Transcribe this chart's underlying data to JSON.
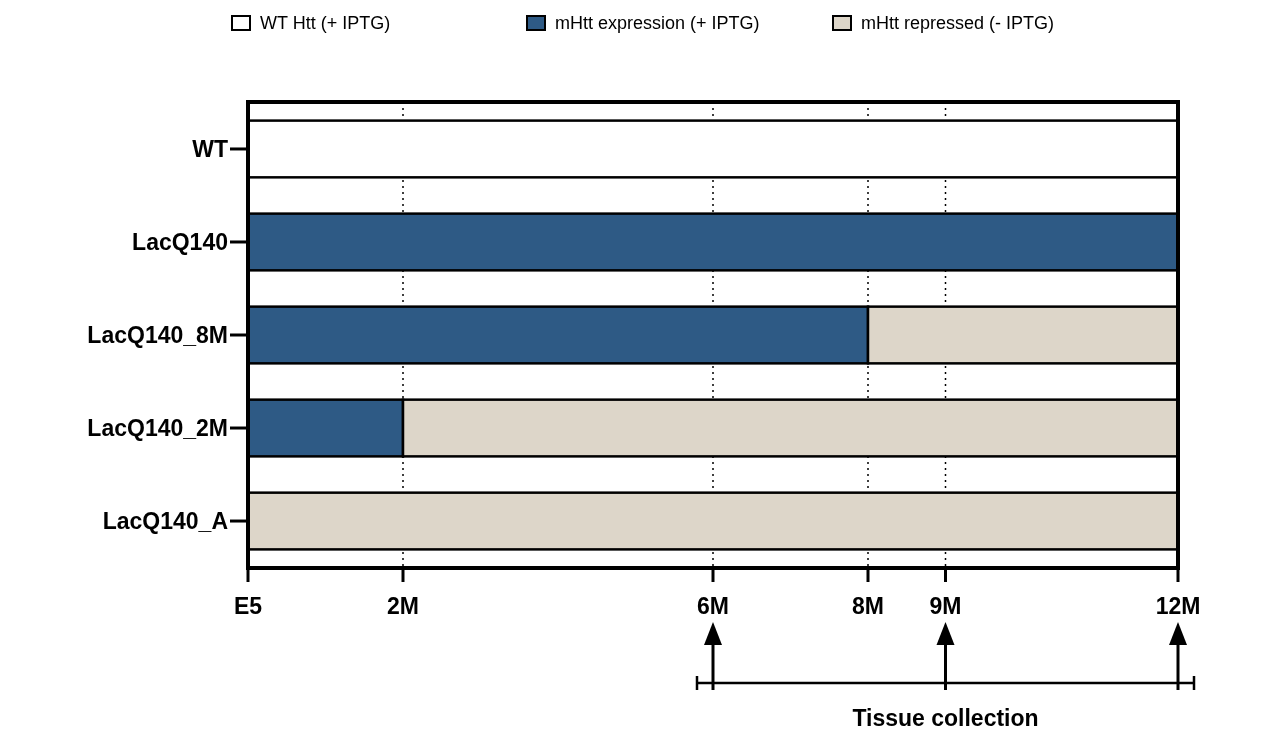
{
  "chart_data": {
    "type": "bar",
    "orientation": "horizontal",
    "stacked": true,
    "categories": [
      "WT",
      "LacQ140",
      "LacQ140_8M",
      "LacQ140_2M",
      "LacQ140_A"
    ],
    "series": [
      {
        "name": "WT Htt (+ IPTG)",
        "color": "#ffffff",
        "values": [
          12,
          0,
          0,
          0,
          0
        ]
      },
      {
        "name": "mHtt expression (+ IPTG)",
        "color": "#2e5a85",
        "values": [
          0,
          12,
          8,
          2,
          0
        ]
      },
      {
        "name": "mHtt repressed (- IPTG)",
        "color": "#ddd6c9",
        "values": [
          0,
          0,
          4,
          10,
          12
        ]
      }
    ],
    "xlim": [
      0,
      12
    ],
    "xticks": [
      {
        "value": 0,
        "label": "E5"
      },
      {
        "value": 2,
        "label": "2M"
      },
      {
        "value": 6,
        "label": "6M"
      },
      {
        "value": 8,
        "label": "8M"
      },
      {
        "value": 9,
        "label": "9M"
      },
      {
        "value": 12,
        "label": "12M"
      }
    ],
    "grid": "x",
    "legend": "top",
    "annotations": [
      "Tissue collection"
    ]
  }
}
